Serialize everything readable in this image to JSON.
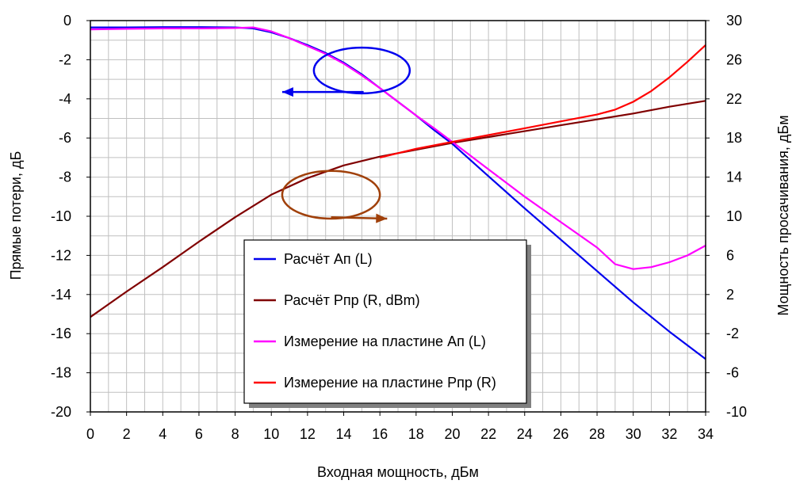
{
  "chart_data": {
    "type": "line",
    "xlabel": "Входная мощность, дБм",
    "ylabel_left": "Прямые потери, дБ",
    "ylabel_right": "Мощность просачивания, дБм",
    "xlim": [
      0,
      34
    ],
    "ylim_left": [
      -20,
      0
    ],
    "ylim_right": [
      -10,
      30
    ],
    "x_ticks": [
      0,
      2,
      4,
      6,
      8,
      10,
      12,
      14,
      16,
      18,
      20,
      22,
      24,
      26,
      28,
      30,
      32,
      34
    ],
    "y_ticks_left": [
      0,
      -2,
      -4,
      -6,
      -8,
      -10,
      -12,
      -14,
      -16,
      -18,
      -20
    ],
    "y_ticks_right": [
      30,
      26,
      22,
      18,
      14,
      10,
      6,
      2,
      -2,
      -6,
      -10
    ],
    "grid": true,
    "legend_placement": "center-bottom",
    "series": [
      {
        "name": "Расчёт Ап (L)",
        "axis": "left",
        "color": "#0000ee",
        "points": [
          [
            0,
            -0.35
          ],
          [
            2,
            -0.35
          ],
          [
            4,
            -0.33
          ],
          [
            6,
            -0.33
          ],
          [
            8,
            -0.35
          ],
          [
            9,
            -0.4
          ],
          [
            10,
            -0.6
          ],
          [
            11,
            -0.9
          ],
          [
            12,
            -1.25
          ],
          [
            13,
            -1.65
          ],
          [
            14,
            -2.15
          ],
          [
            15,
            -2.75
          ],
          [
            16,
            -3.45
          ],
          [
            17,
            -4.15
          ],
          [
            18,
            -4.85
          ],
          [
            19,
            -5.6
          ],
          [
            20,
            -6.3
          ],
          [
            22,
            -7.95
          ],
          [
            24,
            -9.6
          ],
          [
            26,
            -11.2
          ],
          [
            28,
            -12.8
          ],
          [
            30,
            -14.4
          ],
          [
            32,
            -15.9
          ],
          [
            34,
            -17.3
          ]
        ]
      },
      {
        "name": "Расчёт Рпр (R, dBm)",
        "axis": "right",
        "color": "#800000",
        "points": [
          [
            0,
            -0.3
          ],
          [
            2,
            2.3
          ],
          [
            4,
            4.8
          ],
          [
            6,
            7.4
          ],
          [
            8,
            9.9
          ],
          [
            10,
            12.2
          ],
          [
            12,
            13.9
          ],
          [
            14,
            15.2
          ],
          [
            16,
            16.1
          ],
          [
            18,
            16.8
          ],
          [
            20,
            17.5
          ],
          [
            22,
            18.1
          ],
          [
            24,
            18.7
          ],
          [
            26,
            19.3
          ],
          [
            28,
            19.9
          ],
          [
            30,
            20.5
          ],
          [
            32,
            21.2
          ],
          [
            34,
            21.8
          ]
        ]
      },
      {
        "name": "Измерение на пластине Ап (L)",
        "axis": "left",
        "color": "#ff00ff",
        "points": [
          [
            0,
            -0.45
          ],
          [
            2,
            -0.42
          ],
          [
            4,
            -0.4
          ],
          [
            6,
            -0.4
          ],
          [
            8,
            -0.38
          ],
          [
            9,
            -0.35
          ],
          [
            10,
            -0.55
          ],
          [
            11,
            -0.9
          ],
          [
            12,
            -1.3
          ],
          [
            13,
            -1.7
          ],
          [
            14,
            -2.2
          ],
          [
            15,
            -2.8
          ],
          [
            16,
            -3.45
          ],
          [
            17,
            -4.15
          ],
          [
            18,
            -4.85
          ],
          [
            19,
            -5.5
          ],
          [
            20,
            -6.2
          ],
          [
            22,
            -7.6
          ],
          [
            24,
            -9.0
          ],
          [
            26,
            -10.3
          ],
          [
            28,
            -11.6
          ],
          [
            29,
            -12.45
          ],
          [
            30,
            -12.7
          ],
          [
            31,
            -12.6
          ],
          [
            32,
            -12.35
          ],
          [
            33,
            -12.0
          ],
          [
            34,
            -11.5
          ]
        ]
      },
      {
        "name": "Измерение на пластине Рпр (R)",
        "axis": "right",
        "color": "#ff0000",
        "points": [
          [
            16,
            16.0
          ],
          [
            18,
            16.9
          ],
          [
            20,
            17.6
          ],
          [
            22,
            18.3
          ],
          [
            24,
            19.0
          ],
          [
            26,
            19.7
          ],
          [
            28,
            20.4
          ],
          [
            29,
            20.9
          ],
          [
            30,
            21.7
          ],
          [
            31,
            22.8
          ],
          [
            32,
            24.2
          ],
          [
            33,
            25.8
          ],
          [
            34,
            27.5
          ]
        ]
      }
    ],
    "annotations": [
      {
        "shape": "ellipse",
        "color": "#0000ee",
        "center": [
          15,
          -2.55
        ],
        "rx_units": 2.65,
        "ry_units": 1.17,
        "arrow_to": [
          10.6,
          -3.65
        ],
        "arrow_from": [
          15.1,
          -3.65
        ]
      },
      {
        "shape": "ellipse",
        "color": "#a0400a",
        "center": [
          13.3,
          -8.9
        ],
        "rx_units": 2.7,
        "ry_units": 1.22,
        "arrow_to": [
          16.4,
          -10.12
        ],
        "arrow_from": [
          13.3,
          -10.05
        ]
      }
    ]
  }
}
